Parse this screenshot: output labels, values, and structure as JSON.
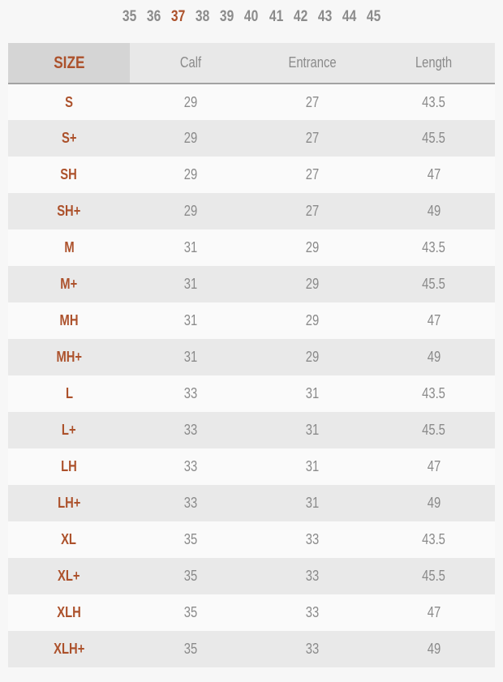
{
  "accent_color": "#ac512b",
  "text_gray": "#8a8a8a",
  "sizes_bar": {
    "items": [
      "35",
      "36",
      "37",
      "38",
      "39",
      "40",
      "41",
      "42",
      "43",
      "44",
      "45"
    ],
    "selected": "37"
  },
  "table": {
    "headers": [
      "SIZE",
      "Calf",
      "Entrance",
      "Length"
    ],
    "rows": [
      {
        "size": "S",
        "calf": "29",
        "entrance": "27",
        "length": "43.5"
      },
      {
        "size": "S+",
        "calf": "29",
        "entrance": "27",
        "length": "45.5"
      },
      {
        "size": "SH",
        "calf": "29",
        "entrance": "27",
        "length": "47"
      },
      {
        "size": "SH+",
        "calf": "29",
        "entrance": "27",
        "length": "49"
      },
      {
        "size": "M",
        "calf": "31",
        "entrance": "29",
        "length": "43.5"
      },
      {
        "size": "M+",
        "calf": "31",
        "entrance": "29",
        "length": "45.5"
      },
      {
        "size": "MH",
        "calf": "31",
        "entrance": "29",
        "length": "47"
      },
      {
        "size": "MH+",
        "calf": "31",
        "entrance": "29",
        "length": "49"
      },
      {
        "size": "L",
        "calf": "33",
        "entrance": "31",
        "length": "43.5"
      },
      {
        "size": "L+",
        "calf": "33",
        "entrance": "31",
        "length": "45.5"
      },
      {
        "size": "LH",
        "calf": "33",
        "entrance": "31",
        "length": "47"
      },
      {
        "size": "LH+",
        "calf": "33",
        "entrance": "31",
        "length": "49"
      },
      {
        "size": "XL",
        "calf": "35",
        "entrance": "33",
        "length": "43.5"
      },
      {
        "size": "XL+",
        "calf": "35",
        "entrance": "33",
        "length": "45.5"
      },
      {
        "size": "XLH",
        "calf": "35",
        "entrance": "33",
        "length": "47"
      },
      {
        "size": "XLH+",
        "calf": "35",
        "entrance": "33",
        "length": "49"
      }
    ]
  }
}
